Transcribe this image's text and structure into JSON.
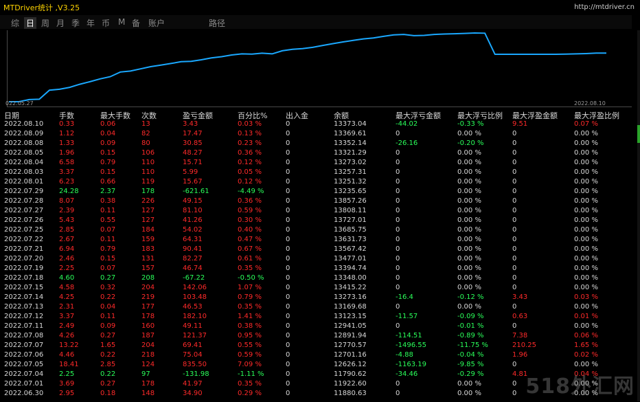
{
  "app": {
    "title": "MTDriver统计 ,V3.25",
    "url": "http://mtdriver.cn"
  },
  "tabs": [
    {
      "label": "综",
      "active": false
    },
    {
      "label": "日",
      "active": true
    },
    {
      "label": "周",
      "active": false
    },
    {
      "label": "月",
      "active": false
    },
    {
      "label": "季",
      "active": false
    },
    {
      "label": "年",
      "active": false
    },
    {
      "label": "币",
      "active": false
    },
    {
      "label": "M",
      "active": false
    },
    {
      "label": "备",
      "active": false
    },
    {
      "label": "账户",
      "active": false
    },
    {
      "label": "路径",
      "active": false
    }
  ],
  "chart": {
    "start_label": "022.05.27",
    "end_label": "2022.08.10",
    "line_color": "#1aa8ff",
    "y_values": [
      11722,
      11722,
      11790,
      11800,
      12090,
      12120,
      12180,
      12280,
      12360,
      12450,
      12520,
      12670,
      12700,
      12770,
      12840,
      12890,
      12941,
      13000,
      13010,
      13060,
      13120,
      13160,
      13214,
      13250,
      13240,
      13270,
      13250,
      13348,
      13394,
      13415,
      13458,
      13518,
      13575,
      13630,
      13680,
      13727,
      13757,
      13808,
      13857,
      13870,
      13830,
      13840,
      13870,
      13882,
      13892,
      13903,
      13916,
      13910,
      13235,
      13235,
      13235,
      13235,
      13235,
      13235,
      13235,
      13240,
      13250,
      13257,
      13273,
      13273
    ]
  },
  "colors": {
    "loss": "#ff2a2a",
    "profit": "#2aff5a",
    "neutral": "#d8d8d8",
    "title": "#ffd400"
  },
  "table": {
    "headers": [
      "日期",
      "手数",
      "最大手数",
      "次数",
      "盈亏金额",
      "百分比%",
      "出入金",
      "余额",
      "最大浮亏金额",
      "最大浮亏比例",
      "最大浮盈金额",
      "最大浮盈比例"
    ],
    "rows": [
      {
        "date": "2022.08.10",
        "lots": "0.33",
        "maxlots": "0.06",
        "count": "13",
        "pl": "3.43",
        "pct": "0.03 %",
        "io": "0",
        "bal": "13373.04",
        "mfl": "-44.02",
        "mflp": "-0.33 %",
        "mfp": "9.51",
        "mfpp": "0.07 %",
        "win": true
      },
      {
        "date": "2022.08.09",
        "lots": "1.12",
        "maxlots": "0.04",
        "count": "82",
        "pl": "17.47",
        "pct": "0.13 %",
        "io": "0",
        "bal": "13369.61",
        "mfl": "0",
        "mflp": "0.00 %",
        "mfp": "0",
        "mfpp": "0.00 %",
        "win": true
      },
      {
        "date": "2022.08.08",
        "lots": "1.33",
        "maxlots": "0.09",
        "count": "80",
        "pl": "30.85",
        "pct": "0.23 %",
        "io": "0",
        "bal": "13352.14",
        "mfl": "-26.16",
        "mflp": "-0.20 %",
        "mfp": "0",
        "mfpp": "0.00 %",
        "win": true
      },
      {
        "date": "2022.08.05",
        "lots": "1.96",
        "maxlots": "0.15",
        "count": "106",
        "pl": "48.27",
        "pct": "0.36 %",
        "io": "0",
        "bal": "13321.29",
        "mfl": "0",
        "mflp": "0.00 %",
        "mfp": "0",
        "mfpp": "0.00 %",
        "win": true
      },
      {
        "date": "2022.08.04",
        "lots": "6.58",
        "maxlots": "0.79",
        "count": "110",
        "pl": "15.71",
        "pct": "0.12 %",
        "io": "0",
        "bal": "13273.02",
        "mfl": "0",
        "mflp": "0.00 %",
        "mfp": "0",
        "mfpp": "0.00 %",
        "win": true
      },
      {
        "date": "2022.08.03",
        "lots": "3.37",
        "maxlots": "0.15",
        "count": "110",
        "pl": "5.99",
        "pct": "0.05 %",
        "io": "0",
        "bal": "13257.31",
        "mfl": "0",
        "mflp": "0.00 %",
        "mfp": "0",
        "mfpp": "0.00 %",
        "win": true
      },
      {
        "date": "2022.08.01",
        "lots": "6.23",
        "maxlots": "0.66",
        "count": "119",
        "pl": "15.67",
        "pct": "0.12 %",
        "io": "0",
        "bal": "13251.32",
        "mfl": "0",
        "mflp": "0.00 %",
        "mfp": "0",
        "mfpp": "0.00 %",
        "win": true
      },
      {
        "date": "2022.07.29",
        "lots": "24.28",
        "maxlots": "2.37",
        "count": "178",
        "pl": "-621.61",
        "pct": "-4.49 %",
        "io": "0",
        "bal": "13235.65",
        "mfl": "0",
        "mflp": "0.00 %",
        "mfp": "0",
        "mfpp": "0.00 %",
        "win": false
      },
      {
        "date": "2022.07.28",
        "lots": "8.07",
        "maxlots": "0.38",
        "count": "226",
        "pl": "49.15",
        "pct": "0.36 %",
        "io": "0",
        "bal": "13857.26",
        "mfl": "0",
        "mflp": "0.00 %",
        "mfp": "0",
        "mfpp": "0.00 %",
        "win": true
      },
      {
        "date": "2022.07.27",
        "lots": "2.39",
        "maxlots": "0.11",
        "count": "127",
        "pl": "81.10",
        "pct": "0.59 %",
        "io": "0",
        "bal": "13808.11",
        "mfl": "0",
        "mflp": "0.00 %",
        "mfp": "0",
        "mfpp": "0.00 %",
        "win": true
      },
      {
        "date": "2022.07.26",
        "lots": "5.43",
        "maxlots": "0.55",
        "count": "127",
        "pl": "41.26",
        "pct": "0.30 %",
        "io": "0",
        "bal": "13727.01",
        "mfl": "0",
        "mflp": "0.00 %",
        "mfp": "0",
        "mfpp": "0.00 %",
        "win": true
      },
      {
        "date": "2022.07.25",
        "lots": "2.85",
        "maxlots": "0.07",
        "count": "184",
        "pl": "54.02",
        "pct": "0.40 %",
        "io": "0",
        "bal": "13685.75",
        "mfl": "0",
        "mflp": "0.00 %",
        "mfp": "0",
        "mfpp": "0.00 %",
        "win": true
      },
      {
        "date": "2022.07.22",
        "lots": "2.67",
        "maxlots": "0.11",
        "count": "159",
        "pl": "64.31",
        "pct": "0.47 %",
        "io": "0",
        "bal": "13631.73",
        "mfl": "0",
        "mflp": "0.00 %",
        "mfp": "0",
        "mfpp": "0.00 %",
        "win": true
      },
      {
        "date": "2022.07.21",
        "lots": "6.94",
        "maxlots": "0.79",
        "count": "183",
        "pl": "90.41",
        "pct": "0.67 %",
        "io": "0",
        "bal": "13567.42",
        "mfl": "0",
        "mflp": "0.00 %",
        "mfp": "0",
        "mfpp": "0.00 %",
        "win": true
      },
      {
        "date": "2022.07.20",
        "lots": "2.46",
        "maxlots": "0.15",
        "count": "131",
        "pl": "82.27",
        "pct": "0.61 %",
        "io": "0",
        "bal": "13477.01",
        "mfl": "0",
        "mflp": "0.00 %",
        "mfp": "0",
        "mfpp": "0.00 %",
        "win": true
      },
      {
        "date": "2022.07.19",
        "lots": "2.25",
        "maxlots": "0.07",
        "count": "157",
        "pl": "46.74",
        "pct": "0.35 %",
        "io": "0",
        "bal": "13394.74",
        "mfl": "0",
        "mflp": "0.00 %",
        "mfp": "0",
        "mfpp": "0.00 %",
        "win": true
      },
      {
        "date": "2022.07.18",
        "lots": "4.60",
        "maxlots": "0.27",
        "count": "208",
        "pl": "-67.22",
        "pct": "-0.50 %",
        "io": "0",
        "bal": "13348.00",
        "mfl": "0",
        "mflp": "0.00 %",
        "mfp": "0",
        "mfpp": "0.00 %",
        "win": false
      },
      {
        "date": "2022.07.15",
        "lots": "4.58",
        "maxlots": "0.32",
        "count": "204",
        "pl": "142.06",
        "pct": "1.07 %",
        "io": "0",
        "bal": "13415.22",
        "mfl": "0",
        "mflp": "0.00 %",
        "mfp": "0",
        "mfpp": "0.00 %",
        "win": true
      },
      {
        "date": "2022.07.14",
        "lots": "4.25",
        "maxlots": "0.22",
        "count": "219",
        "pl": "103.48",
        "pct": "0.79 %",
        "io": "0",
        "bal": "13273.16",
        "mfl": "-16.4",
        "mflp": "-0.12 %",
        "mfp": "3.43",
        "mfpp": "0.03 %",
        "win": true
      },
      {
        "date": "2022.07.13",
        "lots": "2.31",
        "maxlots": "0.04",
        "count": "177",
        "pl": "46.53",
        "pct": "0.35 %",
        "io": "0",
        "bal": "13169.68",
        "mfl": "0",
        "mflp": "0.00 %",
        "mfp": "0",
        "mfpp": "0.00 %",
        "win": true
      },
      {
        "date": "2022.07.12",
        "lots": "3.37",
        "maxlots": "0.11",
        "count": "178",
        "pl": "182.10",
        "pct": "1.41 %",
        "io": "0",
        "bal": "13123.15",
        "mfl": "-11.57",
        "mflp": "-0.09 %",
        "mfp": "0.63",
        "mfpp": "0.01 %",
        "win": true
      },
      {
        "date": "2022.07.11",
        "lots": "2.49",
        "maxlots": "0.09",
        "count": "160",
        "pl": "49.11",
        "pct": "0.38 %",
        "io": "0",
        "bal": "12941.05",
        "mfl": "0",
        "mflp": "-0.01 %",
        "mfp": "0",
        "mfpp": "0.00 %",
        "win": true
      },
      {
        "date": "2022.07.08",
        "lots": "4.26",
        "maxlots": "0.27",
        "count": "187",
        "pl": "121.37",
        "pct": "0.95 %",
        "io": "0",
        "bal": "12891.94",
        "mfl": "-114.51",
        "mflp": "-0.89 %",
        "mfp": "7.38",
        "mfpp": "0.06 %",
        "win": true
      },
      {
        "date": "2022.07.07",
        "lots": "13.22",
        "maxlots": "1.65",
        "count": "204",
        "pl": "69.41",
        "pct": "0.55 %",
        "io": "0",
        "bal": "12770.57",
        "mfl": "-1496.55",
        "mflp": "-11.75 %",
        "mfp": "210.25",
        "mfpp": "1.65 %",
        "win": true
      },
      {
        "date": "2022.07.06",
        "lots": "4.46",
        "maxlots": "0.22",
        "count": "218",
        "pl": "75.04",
        "pct": "0.59 %",
        "io": "0",
        "bal": "12701.16",
        "mfl": "-4.88",
        "mflp": "-0.04 %",
        "mfp": "1.96",
        "mfpp": "0.02 %",
        "win": true
      },
      {
        "date": "2022.07.05",
        "lots": "18.41",
        "maxlots": "2.85",
        "count": "124",
        "pl": "835.50",
        "pct": "7.09 %",
        "io": "0",
        "bal": "12626.12",
        "mfl": "-1163.19",
        "mflp": "-9.85 %",
        "mfp": "0",
        "mfpp": "0.00 %",
        "win": true
      },
      {
        "date": "2022.07.04",
        "lots": "2.25",
        "maxlots": "0.22",
        "count": "97",
        "pl": "-131.98",
        "pct": "-1.11 %",
        "io": "0",
        "bal": "11790.62",
        "mfl": "-34.46",
        "mflp": "-0.29 %",
        "mfp": "4.81",
        "mfpp": "0.04 %",
        "win": false
      },
      {
        "date": "2022.07.01",
        "lots": "3.69",
        "maxlots": "0.27",
        "count": "178",
        "pl": "41.97",
        "pct": "0.35 %",
        "io": "0",
        "bal": "11922.60",
        "mfl": "0",
        "mflp": "0.00 %",
        "mfp": "0",
        "mfpp": "0.00 %",
        "win": true
      },
      {
        "date": "2022.06.30",
        "lots": "2.95",
        "maxlots": "0.18",
        "count": "148",
        "pl": "34.90",
        "pct": "0.29 %",
        "io": "0",
        "bal": "11880.63",
        "mfl": "0",
        "mflp": "0.00 %",
        "mfp": "0",
        "mfpp": "0.00 %",
        "win": true
      }
    ]
  },
  "watermark": "518外汇网"
}
